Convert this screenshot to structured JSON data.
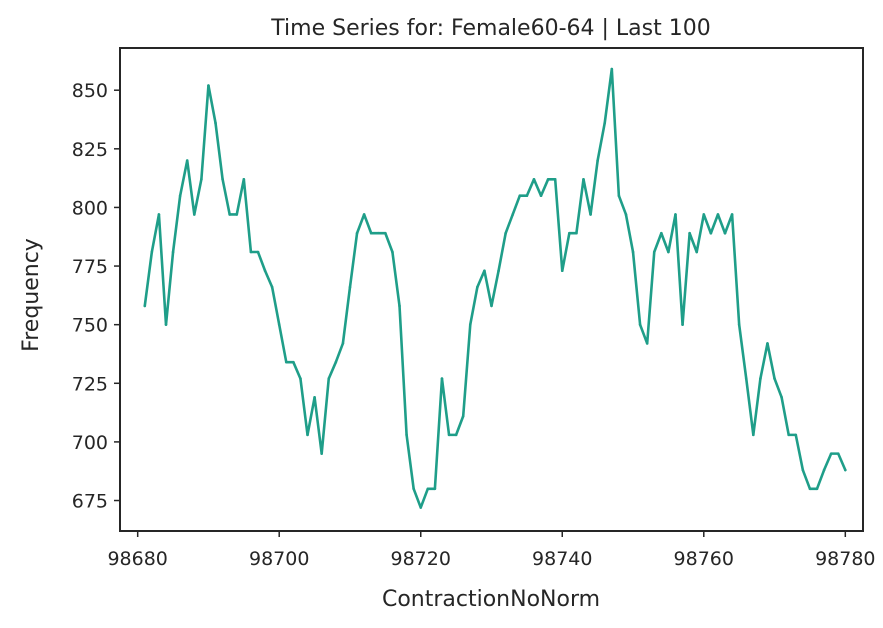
{
  "chart_data": {
    "type": "line",
    "title": "Time Series for: Female60-64 | Last 100",
    "xlabel": "ContractionNoNorm",
    "ylabel": "Frequency",
    "xlim": [
      98677.5,
      98782.5
    ],
    "ylim": [
      662,
      868
    ],
    "xticks": [
      98680,
      98700,
      98720,
      98740,
      98760,
      98780
    ],
    "yticks": [
      675,
      700,
      725,
      750,
      775,
      800,
      825,
      850
    ],
    "grid": false,
    "line_color": "#1f9e89",
    "x": [
      98681,
      98682,
      98683,
      98684,
      98685,
      98686,
      98687,
      98688,
      98689,
      98690,
      98691,
      98692,
      98693,
      98694,
      98695,
      98696,
      98697,
      98698,
      98699,
      98700,
      98701,
      98702,
      98703,
      98704,
      98705,
      98706,
      98707,
      98708,
      98709,
      98710,
      98711,
      98712,
      98713,
      98714,
      98715,
      98716,
      98717,
      98718,
      98719,
      98720,
      98721,
      98722,
      98723,
      98724,
      98725,
      98726,
      98727,
      98728,
      98729,
      98730,
      98731,
      98732,
      98733,
      98734,
      98735,
      98736,
      98737,
      98738,
      98739,
      98740,
      98741,
      98742,
      98743,
      98744,
      98745,
      98746,
      98747,
      98748,
      98749,
      98750,
      98751,
      98752,
      98753,
      98754,
      98755,
      98756,
      98757,
      98758,
      98759,
      98760,
      98761,
      98762,
      98763,
      98764,
      98765,
      98766,
      98767,
      98768,
      98769,
      98770,
      98771,
      98772,
      98773,
      98774,
      98775,
      98776,
      98777,
      98778,
      98779,
      98780
    ],
    "y": [
      758,
      781,
      797,
      750,
      781,
      805,
      820,
      797,
      812,
      852,
      836,
      812,
      797,
      797,
      812,
      781,
      781,
      773,
      766,
      750,
      734,
      734,
      727,
      703,
      719,
      695,
      727,
      734,
      742,
      766,
      789,
      797,
      789,
      789,
      789,
      781,
      758,
      703,
      680,
      672,
      680,
      680,
      727,
      703,
      703,
      711,
      750,
      766,
      773,
      758,
      773,
      789,
      797,
      805,
      805,
      812,
      805,
      812,
      812,
      773,
      789,
      789,
      812,
      797,
      820,
      836,
      859,
      805,
      797,
      781,
      750,
      742,
      781,
      789,
      781,
      797,
      750,
      789,
      781,
      797,
      789,
      797,
      789,
      797,
      750,
      727,
      703,
      727,
      742,
      727,
      719,
      703,
      703,
      688,
      680,
      680,
      688,
      695,
      695,
      688
    ]
  }
}
